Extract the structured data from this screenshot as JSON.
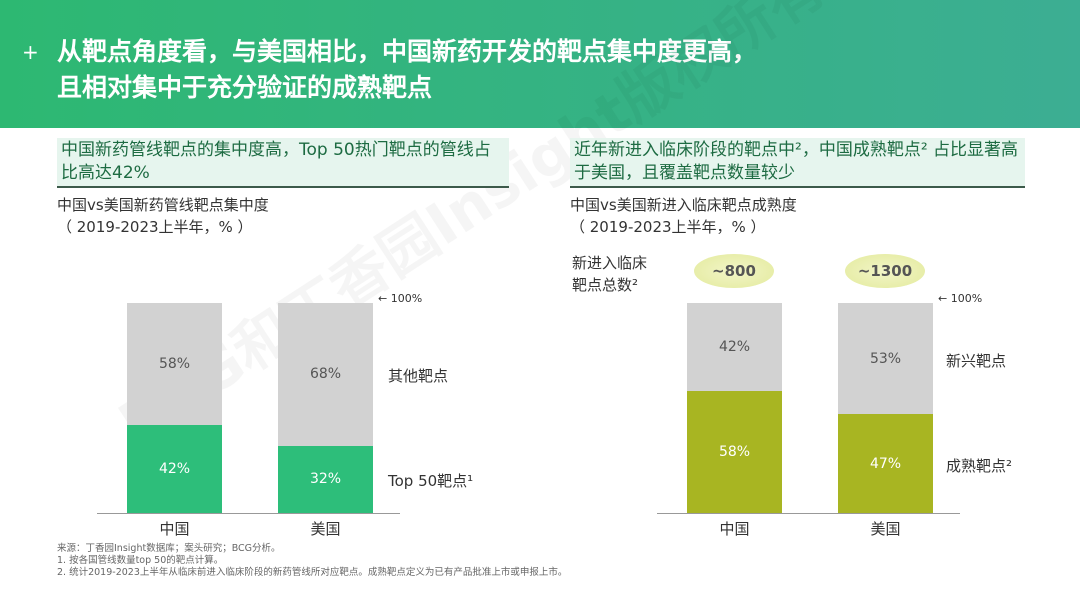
{
  "header": {
    "title_line1": "从靶点角度看，与美国相比，中国新药开发的靶点集中度更高，",
    "title_line2": "且相对集中于充分验证的成熟靶点"
  },
  "watermark": "BCG和丁香园Insight版权所有",
  "colors": {
    "green": "#2dbe7a",
    "gray": "#d2d2d2",
    "olive": "#a8b522"
  },
  "chart_data": [
    {
      "type": "bar",
      "stacked": true,
      "subtitle": "中国新药管线靶点的集中度高，Top 50热门靶点的管线占比高达42%",
      "title": "中国vs美国新药管线靶点集中度",
      "unit_note": "（ 2019-2023上半年，% ）",
      "categories": [
        "中国",
        "美国"
      ],
      "ylim": [
        0,
        100
      ],
      "top_marker": "100%",
      "series": [
        {
          "name": "Top 50靶点¹",
          "values": [
            42,
            32
          ],
          "labels": [
            "42%",
            "32%"
          ]
        },
        {
          "name": "其他靶点",
          "values": [
            58,
            68
          ],
          "labels": [
            "58%",
            "68%"
          ]
        }
      ]
    },
    {
      "type": "bar",
      "stacked": true,
      "subtitle": "近年新进入临床阶段的靶点中²，中国成熟靶点² 占比显著高于美国，且覆盖靶点数量较少",
      "title": "中国vs美国新进入临床靶点成熟度",
      "unit_note": "（ 2019-2023上半年，% ）",
      "categories": [
        "中国",
        "美国"
      ],
      "ylim": [
        0,
        100
      ],
      "top_marker": "100%",
      "totals_label": "新进入临床靶点总数²",
      "totals": [
        "~800",
        "~1300"
      ],
      "series": [
        {
          "name": "成熟靶点²",
          "values": [
            58,
            47
          ],
          "labels": [
            "58%",
            "47%"
          ]
        },
        {
          "name": "新兴靶点",
          "values": [
            42,
            53
          ],
          "labels": [
            "42%",
            "53%"
          ]
        }
      ]
    }
  ],
  "footnotes": [
    "来源：丁香园Insight数据库；案头研究；BCG分析。",
    "1. 按各国管线数量top  50的靶点计算。",
    "2. 统计2019-2023上半年从临床前进入临床阶段的新药管线所对应靶点。成熟靶点定义为已有产品批准上市或申报上市。"
  ]
}
